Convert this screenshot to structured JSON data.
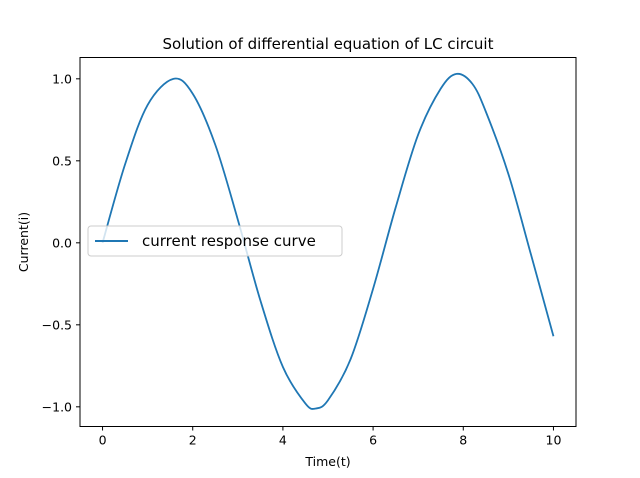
{
  "chart_data": {
    "type": "line",
    "title": "Solution of differential equation  of LC circuit",
    "xlabel": "Time(t)",
    "ylabel": "Current(i)",
    "xlim": [
      -0.5,
      10.5
    ],
    "ylim": [
      -1.12,
      1.13
    ],
    "xticks": [
      0,
      2,
      4,
      6,
      8,
      10
    ],
    "xtick_labels": [
      "0",
      "2",
      "4",
      "6",
      "8",
      "10"
    ],
    "yticks": [
      -1.0,
      -0.5,
      0.0,
      0.5,
      1.0
    ],
    "ytick_labels": [
      "−1.0",
      "−0.5",
      "0.0",
      "0.5",
      "1.0"
    ],
    "grid": false,
    "legend_position": "center-left",
    "series": [
      {
        "name": "current response curve",
        "color": "#1f77b4",
        "x": [
          0.0,
          0.5,
          1.0,
          1.57,
          2.0,
          2.5,
          3.0,
          3.5,
          4.0,
          4.5,
          4.73,
          5.0,
          5.5,
          6.0,
          6.5,
          7.0,
          7.5,
          7.85,
          8.2,
          8.5,
          9.0,
          9.5,
          10.0
        ],
        "y": [
          0.0,
          0.479,
          0.841,
          1.0,
          0.909,
          0.598,
          0.141,
          -0.351,
          -0.757,
          -0.98,
          -1.01,
          -0.96,
          -0.71,
          -0.28,
          0.215,
          0.66,
          0.94,
          1.03,
          0.97,
          0.8,
          0.42,
          -0.07,
          -0.57
        ]
      }
    ]
  }
}
